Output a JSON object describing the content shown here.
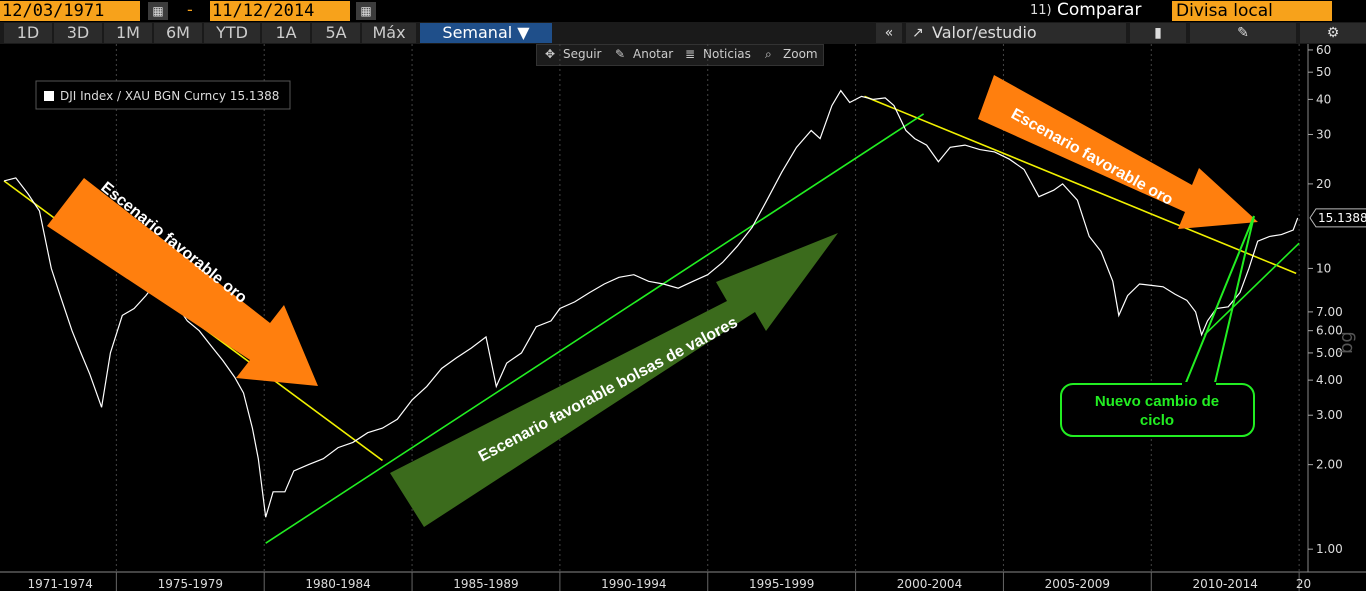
{
  "header": {
    "start_date": "12/03/1971",
    "end_date": "11/12/2014",
    "dash": "-",
    "calendar_icon": "calendar-icon",
    "compare_num": "11)",
    "compare_label": "Comparar",
    "currency": "Divisa local"
  },
  "toolbar": {
    "periods": [
      "1D",
      "3D",
      "1M",
      "6M",
      "YTD",
      "1A",
      "5A",
      "Máx"
    ],
    "frequency": "Semanal ▼",
    "collapse": "«",
    "study_label": "Valor/estudio",
    "study_icon": "chart-study-icon",
    "bookmark_icon": "bookmark-icon",
    "edit_icon": "edit-icon",
    "settings_icon": "gear-icon"
  },
  "minibar": {
    "items": [
      "Seguir",
      "Anotar",
      "Noticias",
      "Zoom"
    ],
    "icons": [
      "crosshair-icon",
      "pencil-icon",
      "news-icon",
      "magnifier-icon"
    ]
  },
  "chart_data": {
    "type": "line",
    "legend": "DJI Index / XAU BGN Curncy 15.1388",
    "last_value_label": "15.1388",
    "last_value": 15.1388,
    "y_scale": "log",
    "ylim": [
      0.9,
      63
    ],
    "y_ticks": [
      1,
      2,
      3,
      4,
      5,
      6,
      7,
      10,
      20,
      30,
      40,
      50,
      60
    ],
    "y_tick_labels": [
      "1.00",
      "2.00",
      "3.00",
      "4.00",
      "5.00",
      "6.00",
      "7.00",
      "10",
      "20",
      "30",
      "40",
      "50",
      "60"
    ],
    "x_range": [
      1971.2,
      2015.3
    ],
    "x_periods": [
      {
        "label": "1971-1974",
        "from": 1971.2,
        "to": 1975
      },
      {
        "label": "1975-1979",
        "from": 1975,
        "to": 1980
      },
      {
        "label": "1980-1984",
        "from": 1980,
        "to": 1985
      },
      {
        "label": "1985-1989",
        "from": 1985,
        "to": 1990
      },
      {
        "label": "1990-1994",
        "from": 1990,
        "to": 1995
      },
      {
        "label": "1995-1999",
        "from": 1995,
        "to": 2000
      },
      {
        "label": "2000-2004",
        "from": 2000,
        "to": 2005
      },
      {
        "label": "2005-2009",
        "from": 2005,
        "to": 2010
      },
      {
        "label": "2010-2014",
        "from": 2010,
        "to": 2015
      },
      {
        "label": "20",
        "from": 2015,
        "to": 2015.3
      }
    ],
    "series": [
      {
        "color": "#ffffff",
        "points": [
          [
            1971.2,
            20.5
          ],
          [
            1971.6,
            21.0
          ],
          [
            1972.0,
            18.5
          ],
          [
            1972.4,
            16.0
          ],
          [
            1972.8,
            10.0
          ],
          [
            1973.1,
            8.0
          ],
          [
            1973.5,
            6.0
          ],
          [
            1973.8,
            5.0
          ],
          [
            1974.1,
            4.2
          ],
          [
            1974.5,
            3.2
          ],
          [
            1974.8,
            5.0
          ],
          [
            1975.2,
            6.8
          ],
          [
            1975.6,
            7.2
          ],
          [
            1976.0,
            8.0
          ],
          [
            1976.3,
            8.8
          ],
          [
            1976.6,
            8.4
          ],
          [
            1977.0,
            7.5
          ],
          [
            1977.4,
            6.5
          ],
          [
            1977.8,
            6.0
          ],
          [
            1978.2,
            5.3
          ],
          [
            1978.6,
            4.7
          ],
          [
            1979.0,
            4.1
          ],
          [
            1979.3,
            3.6
          ],
          [
            1979.6,
            2.7
          ],
          [
            1979.8,
            2.1
          ],
          [
            1980.05,
            1.3
          ],
          [
            1980.3,
            1.6
          ],
          [
            1980.7,
            1.6
          ],
          [
            1981.0,
            1.9
          ],
          [
            1981.5,
            2.0
          ],
          [
            1982.0,
            2.1
          ],
          [
            1982.5,
            2.3
          ],
          [
            1983.0,
            2.4
          ],
          [
            1983.5,
            2.6
          ],
          [
            1984.0,
            2.7
          ],
          [
            1984.5,
            2.9
          ],
          [
            1985.0,
            3.4
          ],
          [
            1985.5,
            3.8
          ],
          [
            1986.0,
            4.4
          ],
          [
            1986.5,
            4.8
          ],
          [
            1987.0,
            5.2
          ],
          [
            1987.5,
            5.7
          ],
          [
            1987.85,
            3.8
          ],
          [
            1988.2,
            4.6
          ],
          [
            1988.7,
            5.0
          ],
          [
            1989.2,
            6.2
          ],
          [
            1989.7,
            6.5
          ],
          [
            1990.0,
            7.2
          ],
          [
            1990.5,
            7.6
          ],
          [
            1991.0,
            8.2
          ],
          [
            1991.5,
            8.8
          ],
          [
            1992.0,
            9.3
          ],
          [
            1992.5,
            9.5
          ],
          [
            1993.0,
            9.0
          ],
          [
            1993.5,
            8.8
          ],
          [
            1994.0,
            8.5
          ],
          [
            1994.5,
            9.0
          ],
          [
            1995.0,
            9.5
          ],
          [
            1995.5,
            10.5
          ],
          [
            1996.0,
            12.0
          ],
          [
            1996.5,
            14.0
          ],
          [
            1997.0,
            17.5
          ],
          [
            1997.5,
            22.0
          ],
          [
            1998.0,
            27.0
          ],
          [
            1998.5,
            31.0
          ],
          [
            1998.8,
            29.0
          ],
          [
            1999.2,
            38.0
          ],
          [
            1999.5,
            43.0
          ],
          [
            1999.8,
            39.0
          ],
          [
            2000.2,
            41.0
          ],
          [
            2000.6,
            40.0
          ],
          [
            2001.0,
            40.5
          ],
          [
            2001.3,
            38.0
          ],
          [
            2001.7,
            31.0
          ],
          [
            2002.0,
            29.0
          ],
          [
            2002.4,
            27.5
          ],
          [
            2002.8,
            24.0
          ],
          [
            2003.2,
            27.0
          ],
          [
            2003.7,
            27.5
          ],
          [
            2004.2,
            26.5
          ],
          [
            2004.7,
            26.0
          ],
          [
            2005.2,
            24.5
          ],
          [
            2005.7,
            22.5
          ],
          [
            2006.2,
            18.0
          ],
          [
            2006.7,
            19.0
          ],
          [
            2007.0,
            20.0
          ],
          [
            2007.5,
            17.5
          ],
          [
            2007.9,
            13.0
          ],
          [
            2008.3,
            11.5
          ],
          [
            2008.7,
            9.0
          ],
          [
            2008.9,
            6.8
          ],
          [
            2009.2,
            8.0
          ],
          [
            2009.6,
            8.8
          ],
          [
            2010.0,
            8.7
          ],
          [
            2010.4,
            8.6
          ],
          [
            2010.8,
            8.1
          ],
          [
            2011.2,
            7.7
          ],
          [
            2011.5,
            7.0
          ],
          [
            2011.7,
            5.8
          ],
          [
            2011.9,
            6.5
          ],
          [
            2012.2,
            7.2
          ],
          [
            2012.6,
            7.3
          ],
          [
            2013.0,
            8.2
          ],
          [
            2013.3,
            10.0
          ],
          [
            2013.6,
            12.5
          ],
          [
            2014.0,
            13.0
          ],
          [
            2014.4,
            13.2
          ],
          [
            2014.8,
            13.7
          ],
          [
            2014.95,
            15.1388
          ]
        ]
      }
    ],
    "trendlines": [
      {
        "color": "#f0f000",
        "from": [
          1971.2,
          20.5
        ],
        "to": [
          1984.0,
          2.07
        ]
      },
      {
        "color": "#f0f000",
        "from": [
          2000.3,
          41.0
        ],
        "to": [
          2014.9,
          9.6
        ]
      },
      {
        "color": "#22ee22",
        "from": [
          1980.05,
          1.05
        ],
        "to": [
          2002.3,
          35.5
        ]
      },
      {
        "color": "#22ee22",
        "from": [
          2011.8,
          5.8
        ],
        "to": [
          2015.0,
          12.3
        ]
      }
    ],
    "annotations": [
      {
        "text": "Escenario favorable oro",
        "color": "#ff7f0e"
      },
      {
        "text": "Escenario favorable bolsas de valores",
        "color": "#3b6b1c"
      },
      {
        "text": "Escenario favorable oro",
        "color": "#ff7f0e"
      },
      {
        "text": "Nuevo cambio de ciclo",
        "color": "#22ee22"
      }
    ]
  }
}
